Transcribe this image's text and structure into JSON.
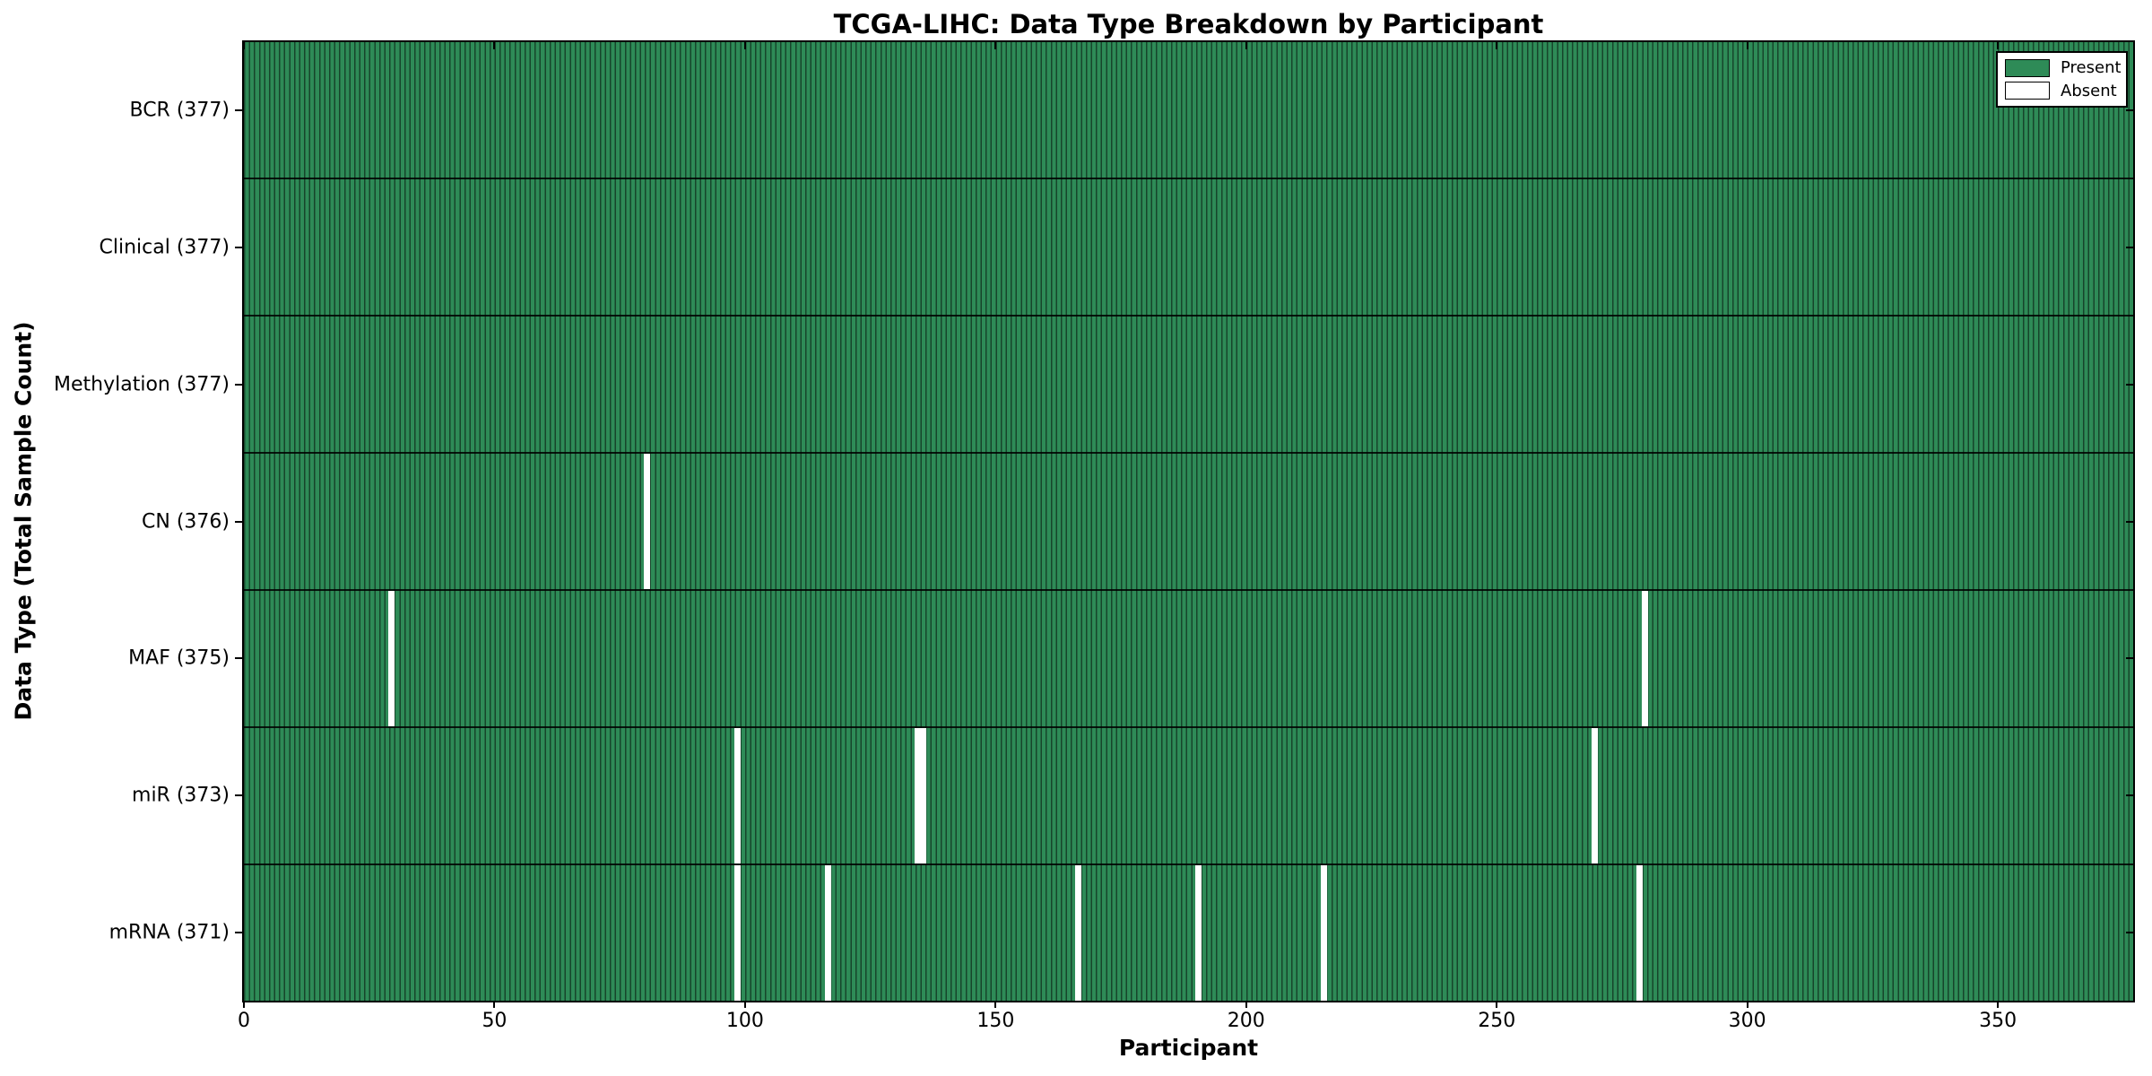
{
  "chart_data": {
    "type": "heatmap",
    "title": "TCGA-LIHC: Data Type Breakdown by Participant",
    "xlabel": "Participant",
    "ylabel": "Data Type (Total Sample Count)",
    "x_ticks": [
      0,
      50,
      100,
      150,
      200,
      250,
      300,
      350
    ],
    "xlim": [
      0,
      377
    ],
    "n_participants": 377,
    "present_color": "#2e8b57",
    "absent_color": "#ffffff",
    "bar_edge_color": "#1a5234",
    "grid": false,
    "rows": [
      {
        "name": "BCR",
        "label": "BCR (377)",
        "total": 377,
        "absent_participants": []
      },
      {
        "name": "Clinical",
        "label": "Clinical (377)",
        "total": 377,
        "absent_participants": []
      },
      {
        "name": "Methylation",
        "label": "Methylation (377)",
        "total": 377,
        "absent_participants": []
      },
      {
        "name": "CN",
        "label": "CN (376)",
        "total": 376,
        "absent_participants": [
          80
        ]
      },
      {
        "name": "MAF",
        "label": "MAF (375)",
        "total": 375,
        "absent_participants": [
          29,
          279
        ]
      },
      {
        "name": "miR",
        "label": "miR (373)",
        "total": 373,
        "absent_participants": [
          98,
          134,
          135,
          269
        ]
      },
      {
        "name": "mRNA",
        "label": "mRNA (371)",
        "total": 371,
        "absent_participants": [
          98,
          116,
          166,
          190,
          215,
          278
        ]
      }
    ],
    "legend": {
      "position": "upper right",
      "entries": [
        {
          "label": "Present",
          "color": "#2e8b57"
        },
        {
          "label": "Absent",
          "color": "#ffffff"
        }
      ]
    }
  }
}
